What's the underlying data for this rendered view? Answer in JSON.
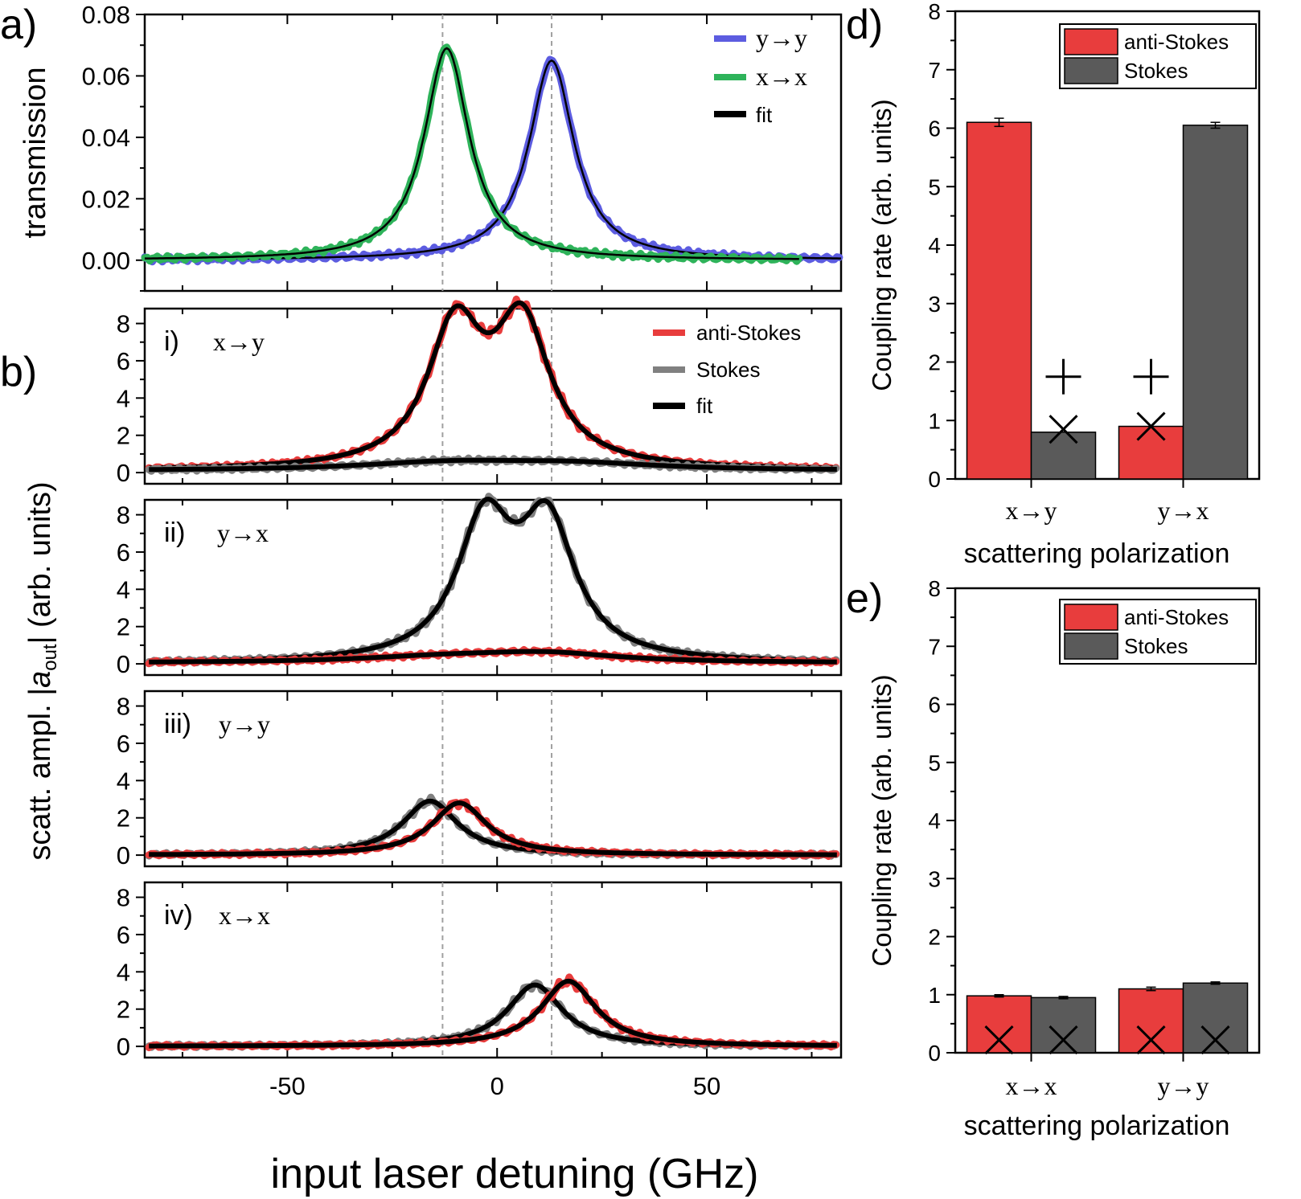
{
  "colors": {
    "anti_stokes": "#e83d3d",
    "stokes": "#5a5a5a",
    "stokes_line": "#808080",
    "fit": "#000000",
    "yy": "#5c5ce0",
    "xx": "#2eb35a",
    "marker_ref": "#000000"
  },
  "figure": {
    "xlabel": "input laser detuning (GHz)",
    "b_ylabel_main": "scatt. ampl. |",
    "b_ylabel_sym": "a",
    "b_ylabel_sub": "out",
    "b_ylabel_end": "| (arb. units)",
    "dashed_lines_x": [
      -13,
      13
    ]
  },
  "chart_data": [
    {
      "id": "a",
      "panel_label": "a)",
      "type": "line",
      "xlim": [
        -84,
        82
      ],
      "ylim": [
        -0.01,
        0.08
      ],
      "ylabel": "transmission",
      "ytick_labels": [
        "0.00",
        "0.02",
        "0.04",
        "0.06",
        "0.08"
      ],
      "legend": [
        "y→y",
        "x→x",
        "fit"
      ],
      "legend_position": "top-right",
      "series": [
        {
          "name": "y→y",
          "color_key": "yy",
          "model": "lorentzian",
          "amplitude": 0.065,
          "center": 13,
          "halfwidth": 6.5,
          "x_start": -84,
          "x_end": 82
        },
        {
          "name": "x→x",
          "color_key": "xx",
          "model": "lorentzian",
          "amplitude": 0.069,
          "center": -12,
          "halfwidth": 6.5,
          "x_start": -84,
          "x_end": 72
        }
      ]
    },
    {
      "id": "b-i",
      "panel_label": "i)",
      "polarization": "x→y",
      "type": "line",
      "xlim": [
        -84,
        82
      ],
      "ylim": [
        -0.6,
        8.8
      ],
      "ytick_labels": [
        "0",
        "2",
        "4",
        "6",
        "8"
      ],
      "legend": [
        "anti-Stokes",
        "Stokes",
        "fit"
      ],
      "legend_position": "top-right",
      "series": [
        {
          "name": "anti-Stokes",
          "color_key": "anti_stokes",
          "peaks": [
            {
              "amplitude": 7.3,
              "center": -10,
              "halfwidth": 8
            },
            {
              "amplitude": 7.5,
              "center": 6,
              "halfwidth": 8
            }
          ],
          "baseline": 0.1
        },
        {
          "name": "Stokes",
          "color_key": "stokes_line",
          "peaks": [
            {
              "amplitude": 0.4,
              "center": -12,
              "halfwidth": 25
            },
            {
              "amplitude": 0.35,
              "center": 18,
              "halfwidth": 25
            }
          ],
          "baseline": 0.1
        }
      ]
    },
    {
      "id": "b-ii",
      "panel_label": "ii)",
      "polarization": "y→x",
      "type": "line",
      "xlim": [
        -84,
        82
      ],
      "ylim": [
        -0.6,
        8.8
      ],
      "ytick_labels": [
        "0",
        "2",
        "4",
        "6",
        "8"
      ],
      "series": [
        {
          "name": "Stokes",
          "color_key": "stokes_line",
          "peaks": [
            {
              "amplitude": 7.2,
              "center": -3,
              "halfwidth": 8
            },
            {
              "amplitude": 7.1,
              "center": 12,
              "halfwidth": 8
            }
          ],
          "baseline": 0.0
        },
        {
          "name": "anti-Stokes",
          "color_key": "anti_stokes",
          "peaks": [
            {
              "amplitude": 0.3,
              "center": -12,
              "halfwidth": 25
            },
            {
              "amplitude": 0.45,
              "center": 12,
              "halfwidth": 20
            }
          ],
          "baseline": 0.05
        }
      ]
    },
    {
      "id": "b-iii",
      "panel_label": "iii)",
      "polarization": "y→y",
      "type": "line",
      "xlim": [
        -84,
        82
      ],
      "ylim": [
        -0.6,
        8.8
      ],
      "ytick_labels": [
        "0",
        "2",
        "4",
        "6",
        "8"
      ],
      "series": [
        {
          "name": "Stokes",
          "color_key": "stokes_line",
          "peaks": [
            {
              "amplitude": 2.9,
              "center": -16,
              "halfwidth": 8
            }
          ],
          "baseline": 0.0
        },
        {
          "name": "anti-Stokes",
          "color_key": "anti_stokes",
          "peaks": [
            {
              "amplitude": 2.8,
              "center": -9,
              "halfwidth": 8
            }
          ],
          "baseline": 0.0
        }
      ]
    },
    {
      "id": "b-iv",
      "panel_label": "iv)",
      "polarization": "x→x",
      "type": "line",
      "xlim": [
        -84,
        82
      ],
      "ylim": [
        -0.6,
        8.8
      ],
      "xtick_labels": [
        "-50",
        "0",
        "50"
      ],
      "ytick_labels": [
        "0",
        "2",
        "4",
        "6",
        "8"
      ],
      "series": [
        {
          "name": "Stokes",
          "color_key": "stokes_line",
          "peaks": [
            {
              "amplitude": 3.3,
              "center": 9,
              "halfwidth": 8
            }
          ],
          "baseline": 0.0
        },
        {
          "name": "anti-Stokes",
          "color_key": "anti_stokes",
          "peaks": [
            {
              "amplitude": 3.5,
              "center": 17,
              "halfwidth": 8
            }
          ],
          "baseline": 0.0
        }
      ]
    },
    {
      "id": "d",
      "panel_label": "d)",
      "type": "bar",
      "ylabel": "Coupling rate (arb. units)",
      "xlabel": "scattering polarization",
      "categories": [
        "x→y",
        "y→x"
      ],
      "ylim": [
        0,
        8
      ],
      "ytick_labels": [
        "0",
        "1",
        "2",
        "3",
        "4",
        "5",
        "6",
        "7",
        "8"
      ],
      "legend": [
        "anti-Stokes",
        "Stokes"
      ],
      "legend_position": "top-right",
      "series": [
        {
          "name": "anti-Stokes",
          "color_key": "anti_stokes",
          "values": [
            6.1,
            0.9
          ],
          "errors": [
            0.07,
            0.0
          ]
        },
        {
          "name": "Stokes",
          "color_key": "stokes",
          "values": [
            0.8,
            6.05
          ],
          "errors": [
            0.0,
            0.05
          ]
        }
      ],
      "markers": [
        {
          "symbol": "+",
          "category": 0,
          "bar": 1,
          "value": 1.75
        },
        {
          "symbol": "×",
          "category": 0,
          "bar": 1,
          "value": 0.85
        },
        {
          "symbol": "+",
          "category": 1,
          "bar": 0,
          "value": 1.75
        },
        {
          "symbol": "×",
          "category": 1,
          "bar": 0,
          "value": 0.9
        }
      ]
    },
    {
      "id": "e",
      "panel_label": "e)",
      "type": "bar",
      "ylabel": "Coupling rate (arb. units)",
      "xlabel": "scattering polarization",
      "categories": [
        "x→x",
        "y→y"
      ],
      "ylim": [
        0,
        8
      ],
      "ytick_labels": [
        "0",
        "1",
        "2",
        "3",
        "4",
        "5",
        "6",
        "7",
        "8"
      ],
      "legend": [
        "anti-Stokes",
        "Stokes"
      ],
      "legend_position": "top-right",
      "series": [
        {
          "name": "anti-Stokes",
          "color_key": "anti_stokes",
          "values": [
            0.98,
            1.1
          ],
          "errors": [
            0.02,
            0.03
          ]
        },
        {
          "name": "Stokes",
          "color_key": "stokes",
          "values": [
            0.95,
            1.2
          ],
          "errors": [
            0.02,
            0.02
          ]
        }
      ],
      "markers": [
        {
          "symbol": "×",
          "category": 0,
          "bar": 0,
          "value": 0.22
        },
        {
          "symbol": "×",
          "category": 0,
          "bar": 1,
          "value": 0.22
        },
        {
          "symbol": "×",
          "category": 1,
          "bar": 0,
          "value": 0.22
        },
        {
          "symbol": "×",
          "category": 1,
          "bar": 1,
          "value": 0.22
        }
      ]
    }
  ]
}
